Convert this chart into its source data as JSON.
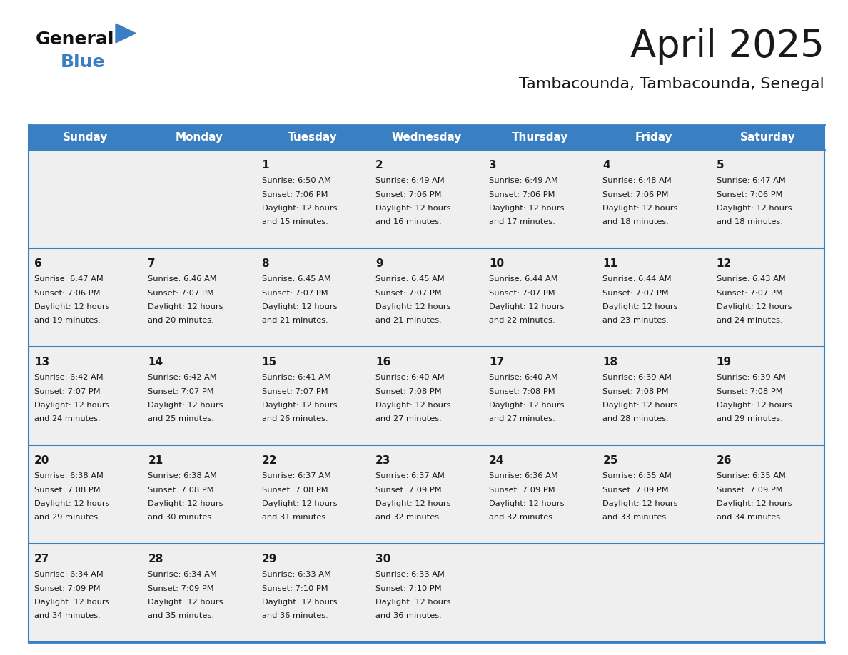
{
  "title": "April 2025",
  "subtitle": "Tambacounda, Tambacounda, Senegal",
  "header_color": "#3a7fc1",
  "header_text_color": "#ffffff",
  "cell_bg_color": "#efefef",
  "border_color": "#3a7fc1",
  "text_color": "#1a1a1a",
  "days_of_week": [
    "Sunday",
    "Monday",
    "Tuesday",
    "Wednesday",
    "Thursday",
    "Friday",
    "Saturday"
  ],
  "logo_color1": "#111111",
  "logo_color2": "#3a7fc1",
  "calendar_data": [
    [
      null,
      null,
      {
        "day": 1,
        "sunrise": "6:50 AM",
        "sunset": "7:06 PM",
        "daylight_hours": 12,
        "daylight_minutes": 15
      },
      {
        "day": 2,
        "sunrise": "6:49 AM",
        "sunset": "7:06 PM",
        "daylight_hours": 12,
        "daylight_minutes": 16
      },
      {
        "day": 3,
        "sunrise": "6:49 AM",
        "sunset": "7:06 PM",
        "daylight_hours": 12,
        "daylight_minutes": 17
      },
      {
        "day": 4,
        "sunrise": "6:48 AM",
        "sunset": "7:06 PM",
        "daylight_hours": 12,
        "daylight_minutes": 18
      },
      {
        "day": 5,
        "sunrise": "6:47 AM",
        "sunset": "7:06 PM",
        "daylight_hours": 12,
        "daylight_minutes": 18
      }
    ],
    [
      {
        "day": 6,
        "sunrise": "6:47 AM",
        "sunset": "7:06 PM",
        "daylight_hours": 12,
        "daylight_minutes": 19
      },
      {
        "day": 7,
        "sunrise": "6:46 AM",
        "sunset": "7:07 PM",
        "daylight_hours": 12,
        "daylight_minutes": 20
      },
      {
        "day": 8,
        "sunrise": "6:45 AM",
        "sunset": "7:07 PM",
        "daylight_hours": 12,
        "daylight_minutes": 21
      },
      {
        "day": 9,
        "sunrise": "6:45 AM",
        "sunset": "7:07 PM",
        "daylight_hours": 12,
        "daylight_minutes": 21
      },
      {
        "day": 10,
        "sunrise": "6:44 AM",
        "sunset": "7:07 PM",
        "daylight_hours": 12,
        "daylight_minutes": 22
      },
      {
        "day": 11,
        "sunrise": "6:44 AM",
        "sunset": "7:07 PM",
        "daylight_hours": 12,
        "daylight_minutes": 23
      },
      {
        "day": 12,
        "sunrise": "6:43 AM",
        "sunset": "7:07 PM",
        "daylight_hours": 12,
        "daylight_minutes": 24
      }
    ],
    [
      {
        "day": 13,
        "sunrise": "6:42 AM",
        "sunset": "7:07 PM",
        "daylight_hours": 12,
        "daylight_minutes": 24
      },
      {
        "day": 14,
        "sunrise": "6:42 AM",
        "sunset": "7:07 PM",
        "daylight_hours": 12,
        "daylight_minutes": 25
      },
      {
        "day": 15,
        "sunrise": "6:41 AM",
        "sunset": "7:07 PM",
        "daylight_hours": 12,
        "daylight_minutes": 26
      },
      {
        "day": 16,
        "sunrise": "6:40 AM",
        "sunset": "7:08 PM",
        "daylight_hours": 12,
        "daylight_minutes": 27
      },
      {
        "day": 17,
        "sunrise": "6:40 AM",
        "sunset": "7:08 PM",
        "daylight_hours": 12,
        "daylight_minutes": 27
      },
      {
        "day": 18,
        "sunrise": "6:39 AM",
        "sunset": "7:08 PM",
        "daylight_hours": 12,
        "daylight_minutes": 28
      },
      {
        "day": 19,
        "sunrise": "6:39 AM",
        "sunset": "7:08 PM",
        "daylight_hours": 12,
        "daylight_minutes": 29
      }
    ],
    [
      {
        "day": 20,
        "sunrise": "6:38 AM",
        "sunset": "7:08 PM",
        "daylight_hours": 12,
        "daylight_minutes": 29
      },
      {
        "day": 21,
        "sunrise": "6:38 AM",
        "sunset": "7:08 PM",
        "daylight_hours": 12,
        "daylight_minutes": 30
      },
      {
        "day": 22,
        "sunrise": "6:37 AM",
        "sunset": "7:08 PM",
        "daylight_hours": 12,
        "daylight_minutes": 31
      },
      {
        "day": 23,
        "sunrise": "6:37 AM",
        "sunset": "7:09 PM",
        "daylight_hours": 12,
        "daylight_minutes": 32
      },
      {
        "day": 24,
        "sunrise": "6:36 AM",
        "sunset": "7:09 PM",
        "daylight_hours": 12,
        "daylight_minutes": 32
      },
      {
        "day": 25,
        "sunrise": "6:35 AM",
        "sunset": "7:09 PM",
        "daylight_hours": 12,
        "daylight_minutes": 33
      },
      {
        "day": 26,
        "sunrise": "6:35 AM",
        "sunset": "7:09 PM",
        "daylight_hours": 12,
        "daylight_minutes": 34
      }
    ],
    [
      {
        "day": 27,
        "sunrise": "6:34 AM",
        "sunset": "7:09 PM",
        "daylight_hours": 12,
        "daylight_minutes": 34
      },
      {
        "day": 28,
        "sunrise": "6:34 AM",
        "sunset": "7:09 PM",
        "daylight_hours": 12,
        "daylight_minutes": 35
      },
      {
        "day": 29,
        "sunrise": "6:33 AM",
        "sunset": "7:10 PM",
        "daylight_hours": 12,
        "daylight_minutes": 36
      },
      {
        "day": 30,
        "sunrise": "6:33 AM",
        "sunset": "7:10 PM",
        "daylight_hours": 12,
        "daylight_minutes": 36
      },
      null,
      null,
      null
    ]
  ]
}
